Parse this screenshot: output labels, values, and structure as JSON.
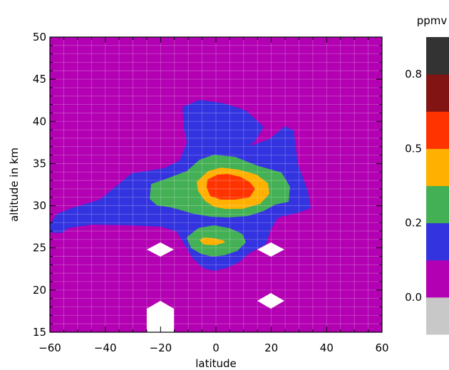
{
  "chart_data": {
    "type": "heatmap",
    "subtype": "filled-contour",
    "title": "",
    "xlabel": "latitude",
    "ylabel": "altitude in km",
    "xlim": [
      -60,
      60
    ],
    "ylim": [
      15,
      50
    ],
    "xticks": [
      "−60",
      "−40",
      "−20",
      "0",
      "20",
      "40",
      "60"
    ],
    "yticks": [
      "15",
      "20",
      "25",
      "30",
      "35",
      "40",
      "45",
      "50"
    ],
    "grid": true,
    "background_level_color": "#b300b3",
    "colorbar": {
      "unit": "ppmv",
      "levels": [
        {
          "color": "#c8c8c8"
        },
        {
          "color": "#b300b3"
        },
        {
          "color": "#3333e0"
        },
        {
          "color": "#44b055"
        },
        {
          "color": "#ffb000"
        },
        {
          "color": "#ff3300"
        },
        {
          "color": "#821414"
        },
        {
          "color": "#333333"
        }
      ],
      "tick_labels": [
        "0.0",
        "0.2",
        "0.5",
        "0.8"
      ]
    },
    "regions": [
      {
        "level": "blue",
        "color": "#3333e0",
        "lat_range": [
          -60,
          34
        ],
        "alt_range": [
          22,
          41.5
        ]
      },
      {
        "level": "green",
        "color": "#44b055",
        "lat_range": [
          -24,
          27
        ],
        "alt_range": [
          29.5,
          36
        ]
      },
      {
        "level": "green",
        "color": "#44b055",
        "lat_range": [
          -10,
          12
        ],
        "alt_range": [
          24,
          28
        ]
      },
      {
        "level": "yellow",
        "color": "#ffb000",
        "lat_range": [
          -7,
          20
        ],
        "alt_range": [
          29.5,
          34.5
        ]
      },
      {
        "level": "yellow",
        "color": "#ffb000",
        "lat_range": [
          -6,
          5
        ],
        "alt_range": [
          25.8,
          26.5
        ]
      },
      {
        "level": "red",
        "color": "#ff3300",
        "lat_range": [
          -3,
          14
        ],
        "alt_range": [
          31,
          33.5
        ]
      }
    ],
    "missing_color": "#ffffff"
  }
}
